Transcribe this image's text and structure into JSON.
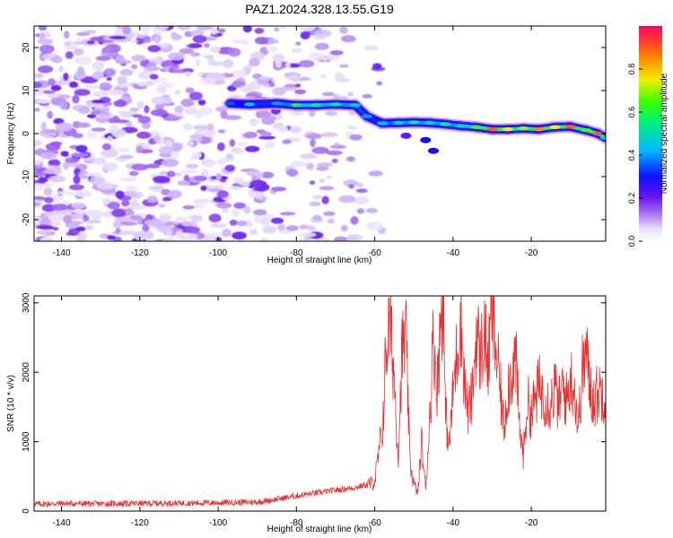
{
  "figure": {
    "title": "PAZ1.2024.328.13.55.G19"
  },
  "chart_data": [
    {
      "type": "heatmap",
      "xlabel": "Height of straight line (km)",
      "ylabel": "Frequency (Hz)",
      "xlim": [
        -147,
        -1
      ],
      "ylim": [
        -25,
        25
      ],
      "xticks": [
        -140,
        -120,
        -100,
        -80,
        -60,
        -40,
        -20
      ],
      "yticks": [
        -20,
        -10,
        0,
        10,
        20
      ],
      "colorbar": {
        "label": "Normalized spectral amplitude",
        "range": [
          0.0,
          1.0
        ],
        "ticks": [
          0.0,
          0.2,
          0.4,
          0.6,
          0.8
        ],
        "colormap": [
          "#ffffff",
          "#c9b5f5",
          "#8b2be2",
          "#3a00ff",
          "#00c8ff",
          "#00ff40",
          "#f4f000",
          "#ff7a00",
          "#ff0060"
        ]
      },
      "noise_region_x": [
        -147,
        -58
      ],
      "signal_track": [
        {
          "x": -97,
          "freq": 7.0,
          "amp": 0.35
        },
        {
          "x": -92,
          "freq": 6.8,
          "amp": 0.45
        },
        {
          "x": -85,
          "freq": 7.0,
          "amp": 0.4
        },
        {
          "x": -80,
          "freq": 6.6,
          "amp": 0.6
        },
        {
          "x": -75,
          "freq": 6.6,
          "amp": 0.55
        },
        {
          "x": -70,
          "freq": 6.8,
          "amp": 0.55
        },
        {
          "x": -65,
          "freq": 6.6,
          "amp": 0.5
        },
        {
          "x": -62,
          "freq": 4.0,
          "amp": 0.4
        },
        {
          "x": -58,
          "freq": 2.4,
          "amp": 0.45
        },
        {
          "x": -54,
          "freq": 2.5,
          "amp": 0.5
        },
        {
          "x": -50,
          "freq": 2.6,
          "amp": 0.55
        },
        {
          "x": -46,
          "freq": 2.5,
          "amp": 0.5
        },
        {
          "x": -42,
          "freq": 2.2,
          "amp": 0.55
        },
        {
          "x": -38,
          "freq": 1.8,
          "amp": 0.5
        },
        {
          "x": -34,
          "freq": 1.5,
          "amp": 0.65
        },
        {
          "x": -30,
          "freq": 1.0,
          "amp": 0.9
        },
        {
          "x": -26,
          "freq": 1.0,
          "amp": 0.75
        },
        {
          "x": -22,
          "freq": 1.2,
          "amp": 0.7
        },
        {
          "x": -18,
          "freq": 1.0,
          "amp": 0.85
        },
        {
          "x": -14,
          "freq": 1.5,
          "amp": 0.75
        },
        {
          "x": -10,
          "freq": 1.6,
          "amp": 0.9
        },
        {
          "x": -6,
          "freq": 0.8,
          "amp": 0.65
        },
        {
          "x": -3,
          "freq": 0.0,
          "amp": 0.9
        },
        {
          "x": -1,
          "freq": -1.0,
          "amp": 0.5
        }
      ],
      "secondary_blobs": [
        {
          "x": -47,
          "freq": -1.5,
          "amp": 0.3
        },
        {
          "x": -45,
          "freq": -4.0,
          "amp": 0.3
        },
        {
          "x": -52,
          "freq": -0.5,
          "amp": 0.2
        }
      ]
    },
    {
      "type": "line",
      "xlabel": "Height of straight line (km)",
      "ylabel": "SNR (10 * v/v)",
      "xlim": [
        -147,
        -1
      ],
      "ylim": [
        0,
        3100
      ],
      "xticks": [
        -140,
        -120,
        -100,
        -80,
        -60,
        -40,
        -20
      ],
      "yticks": [
        0,
        1000,
        2000,
        3000
      ],
      "series": [
        {
          "color": "#e53030",
          "x": [
            -147,
            -140,
            -130,
            -120,
            -110,
            -100,
            -90,
            -85,
            -80,
            -75,
            -70,
            -65,
            -62,
            -60,
            -58,
            -57,
            -56,
            -55,
            -54,
            -53,
            -52,
            -51,
            -50,
            -49,
            -48,
            -47,
            -46,
            -45,
            -44,
            -43,
            -42.5,
            -42,
            -41,
            -40,
            -39,
            -38,
            -37,
            -36,
            -35,
            -34,
            -33,
            -32,
            -31,
            -30,
            -29,
            -28,
            -27,
            -26,
            -25,
            -24,
            -23,
            -22,
            -21,
            -20,
            -19,
            -18,
            -17,
            -16,
            -15,
            -14,
            -13,
            -12,
            -11,
            -10,
            -9,
            -8,
            -7,
            -6,
            -5,
            -4,
            -3,
            -2,
            -1
          ],
          "y": [
            100,
            110,
            105,
            110,
            115,
            120,
            130,
            170,
            220,
            260,
            300,
            340,
            380,
            420,
            1200,
            2400,
            2700,
            1900,
            800,
            2300,
            2500,
            700,
            400,
            250,
            1000,
            300,
            1300,
            2500,
            1800,
            2900,
            3100,
            1500,
            900,
            1700,
            2300,
            2800,
            1800,
            1400,
            1700,
            2600,
            2200,
            2600,
            2100,
            2900,
            2300,
            1800,
            1200,
            1800,
            2000,
            2200,
            1200,
            800,
            1600,
            1400,
            1600,
            1800,
            1700,
            1600,
            1550,
            1800,
            1500,
            1800,
            1600,
            1900,
            1800,
            1200,
            2000,
            2300,
            1800,
            1600,
            1700,
            1750,
            1700
          ]
        }
      ]
    }
  ]
}
